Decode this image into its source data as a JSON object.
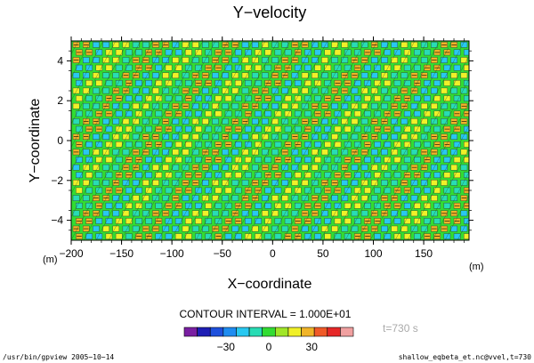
{
  "chart_data": {
    "type": "heatmap",
    "title": "Y−velocity",
    "xlabel": "X−coordinate",
    "ylabel": "Y−coordinate",
    "x_unit": "(m)",
    "y_unit": "(m)",
    "xlim": [
      -200,
      195
    ],
    "ylim": [
      -5,
      5
    ],
    "x_ticks": [
      -200,
      -150,
      -100,
      -50,
      0,
      50,
      100,
      150
    ],
    "x_tick_labels": [
      "−200",
      "−150",
      "−100",
      "−50",
      "0",
      "50",
      "100",
      "150"
    ],
    "y_ticks": [
      -4,
      -2,
      0,
      2,
      4
    ],
    "y_tick_labels": [
      "−4",
      "−2",
      "0",
      "2",
      "4"
    ],
    "contour_interval_text": "CONTOUR INTERVAL = 1.000E+01",
    "contour_interval": 10,
    "time_label": "t=730 s",
    "colorbar": {
      "levels": [
        -50,
        -40,
        -30,
        -20,
        -10,
        0,
        10,
        20,
        30,
        40,
        50
      ],
      "tick_values": [
        -30,
        0,
        30
      ],
      "tick_labels": [
        "−30",
        "0",
        "30"
      ],
      "colors": [
        "#7a1fa2",
        "#1e1eb4",
        "#1e50dc",
        "#1e8cf0",
        "#28c8f0",
        "#28dcb4",
        "#32dc32",
        "#a0e628",
        "#f0f028",
        "#f0b428",
        "#f05a28",
        "#e62828",
        "#f0a0a0"
      ]
    },
    "footer": {
      "left": "/usr/bin/gpview   2005−10−14",
      "right": "shallow_eqbeta_et.nc@vvel,t=730"
    }
  }
}
